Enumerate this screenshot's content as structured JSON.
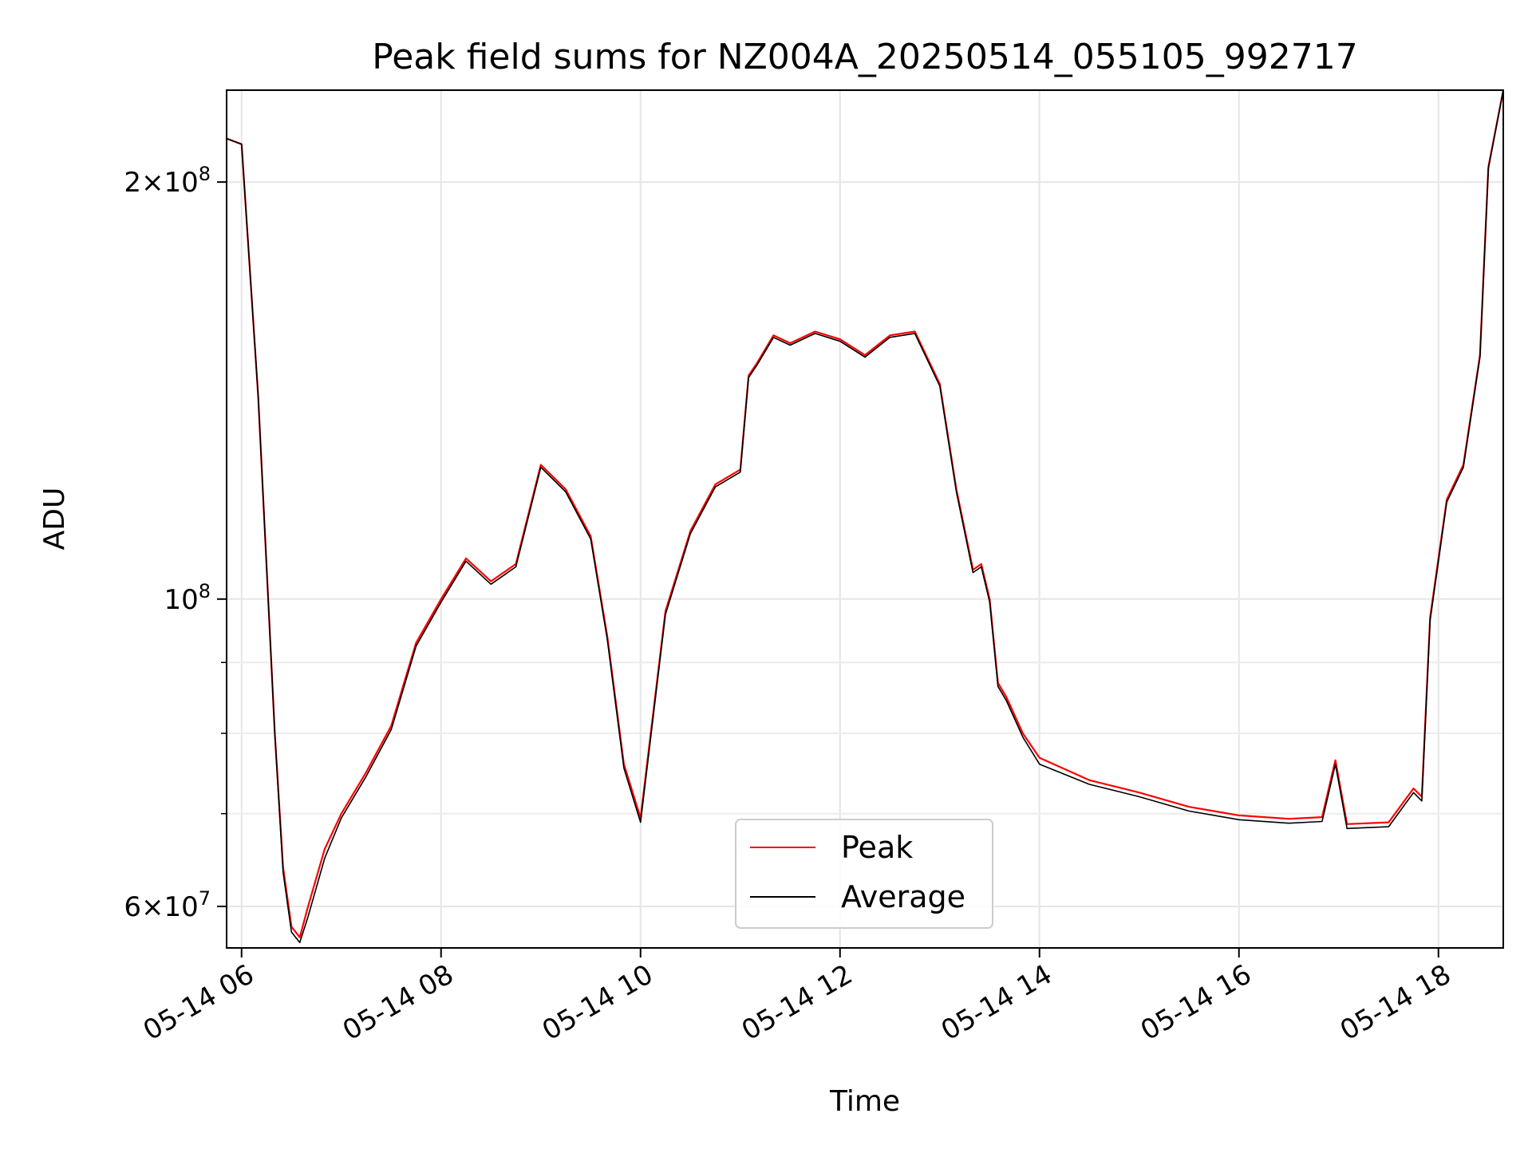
{
  "chart_data": {
    "type": "line",
    "title": "Peak field sums for NZ004A_20250514_055105_992717",
    "xlabel": "Time",
    "ylabel": "ADU",
    "yscale": "log",
    "ylim": [
      56000000,
      233000000
    ],
    "xlim": [
      "05-14 05:51",
      "05-14 18:39"
    ],
    "grid": true,
    "legend_position": "bottom-center",
    "x_ticks": [
      "05-14 06",
      "05-14 08",
      "05-14 10",
      "05-14 12",
      "05-14 14",
      "05-14 16",
      "05-14 18"
    ],
    "y_ticks": [
      {
        "value": 60000000,
        "mantissa": "6",
        "exponent": "7"
      },
      {
        "value": 100000000,
        "mantissa": "",
        "exponent": "8"
      },
      {
        "value": 200000000,
        "mantissa": "2",
        "exponent": "8"
      }
    ],
    "y_minor_ticks": [
      70000000,
      80000000,
      90000000
    ],
    "x": [
      "05-14 05:51",
      "05-14 06:00",
      "05-14 06:10",
      "05-14 06:20",
      "05-14 06:25",
      "05-14 06:30",
      "05-14 06:35",
      "05-14 06:40",
      "05-14 06:50",
      "05-14 07:00",
      "05-14 07:15",
      "05-14 07:30",
      "05-14 07:45",
      "05-14 08:00",
      "05-14 08:15",
      "05-14 08:30",
      "05-14 08:45",
      "05-14 09:00",
      "05-14 09:15",
      "05-14 09:30",
      "05-14 09:40",
      "05-14 09:50",
      "05-14 10:00",
      "05-14 10:15",
      "05-14 10:30",
      "05-14 10:45",
      "05-14 11:00",
      "05-14 11:05",
      "05-14 11:10",
      "05-14 11:20",
      "05-14 11:30",
      "05-14 11:45",
      "05-14 12:00",
      "05-14 12:15",
      "05-14 12:30",
      "05-14 12:45",
      "05-14 13:00",
      "05-14 13:10",
      "05-14 13:20",
      "05-14 13:25",
      "05-14 13:30",
      "05-14 13:35",
      "05-14 13:40",
      "05-14 13:50",
      "05-14 14:00",
      "05-14 14:30",
      "05-14 15:00",
      "05-14 15:30",
      "05-14 16:00",
      "05-14 16:30",
      "05-14 16:50",
      "05-14 16:58",
      "05-14 17:05",
      "05-14 17:30",
      "05-14 17:45",
      "05-14 17:50",
      "05-14 17:55",
      "05-14 18:05",
      "05-14 18:15",
      "05-14 18:25",
      "05-14 18:30",
      "05-14 18:39"
    ],
    "series": [
      {
        "name": "Peak",
        "color": "#ff0000",
        "values": [
          215000000,
          213000000,
          140000000,
          80000000,
          64000000,
          58000000,
          57000000,
          60000000,
          66000000,
          70000000,
          75000000,
          81000000,
          93000000,
          100000000,
          107000000,
          103000000,
          106000000,
          125000000,
          120000000,
          111000000,
          94000000,
          76000000,
          69500000,
          98000000,
          112000000,
          121000000,
          124000000,
          145000000,
          148000000,
          155000000,
          153000000,
          156000000,
          154000000,
          150000000,
          155000000,
          156000000,
          143000000,
          120000000,
          105000000,
          106000000,
          100000000,
          87000000,
          85000000,
          80000000,
          76800000,
          74000000,
          72500000,
          70800000,
          69800000,
          69400000,
          69600000,
          76500000,
          68800000,
          69000000,
          73000000,
          72000000,
          97000000,
          118000000,
          125000000,
          150000000,
          205000000,
          233000000
        ]
      },
      {
        "name": "Average",
        "color": "#000000",
        "values": [
          215000000,
          213000000,
          140000000,
          80000000,
          63500000,
          57500000,
          56500000,
          59000000,
          65000000,
          69500000,
          74500000,
          80500000,
          92500000,
          99500000,
          106500000,
          102500000,
          105500000,
          124500000,
          119500000,
          110500000,
          93500000,
          75500000,
          69000000,
          97500000,
          111500000,
          120500000,
          123500000,
          144500000,
          147500000,
          154500000,
          152500000,
          155500000,
          153500000,
          149500000,
          154500000,
          155500000,
          142500000,
          119500000,
          104500000,
          105500000,
          99500000,
          86500000,
          84500000,
          79500000,
          76000000,
          73500000,
          72000000,
          70300000,
          69300000,
          68900000,
          69100000,
          76000000,
          68300000,
          68500000,
          72500000,
          71500000,
          96500000,
          117500000,
          124500000,
          149500000,
          204500000,
          233000000
        ]
      }
    ]
  }
}
